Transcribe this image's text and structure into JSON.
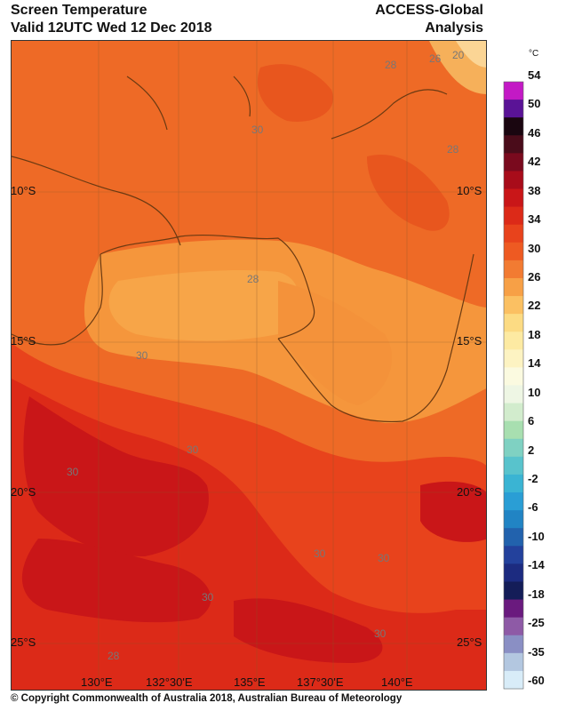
{
  "header": {
    "title_line1": "Screen Temperature",
    "title_line2": "Valid 12UTC Wed 12 Dec 2018",
    "model_line1": "ACCESS-Global",
    "model_line2": "Analysis"
  },
  "map": {
    "lon_ticks": [
      "130°E",
      "132°30'E",
      "135°E",
      "137°30'E",
      "140°E"
    ],
    "lat_ticks": [
      "10°S",
      "15°S",
      "20°S",
      "25°S"
    ],
    "contour_labels": [
      "20",
      "26",
      "28",
      "30",
      "28",
      "30",
      "28",
      "30",
      "30",
      "30",
      "30",
      "30",
      "28",
      "30"
    ]
  },
  "legend": {
    "unit": "°C",
    "labels": [
      "54",
      "50",
      "46",
      "42",
      "38",
      "34",
      "30",
      "26",
      "22",
      "18",
      "14",
      "10",
      "6",
      "2",
      "-2",
      "-6",
      "-10",
      "-14",
      "-18",
      "-25",
      "-35",
      "-60"
    ],
    "colors": [
      "#c319c5",
      "#5a1396",
      "#1a0610",
      "#4a0c1a",
      "#7a0a1e",
      "#a80c1a",
      "#c91618",
      "#dc2a18",
      "#e8431c",
      "#ee5a22",
      "#f27b32",
      "#f7a046",
      "#fbc062",
      "#fcdb83",
      "#fdeaa2",
      "#fdf3c2",
      "#fbfae0",
      "#eef6e4",
      "#d2eccd",
      "#a8dfb0",
      "#7fd1c2",
      "#58c3cc",
      "#3ab4d3",
      "#2a9ed5",
      "#2184c4",
      "#2262ad",
      "#23419c",
      "#1c2b80",
      "#141d58",
      "#6a1a7e",
      "#8e5aa6",
      "#8a8fc4",
      "#b3c7e0",
      "#d8ecf8"
    ]
  },
  "footer": {
    "copyright": "© Copyright Commonwealth of Australia 2018, Australian Bureau of Meteorology"
  }
}
